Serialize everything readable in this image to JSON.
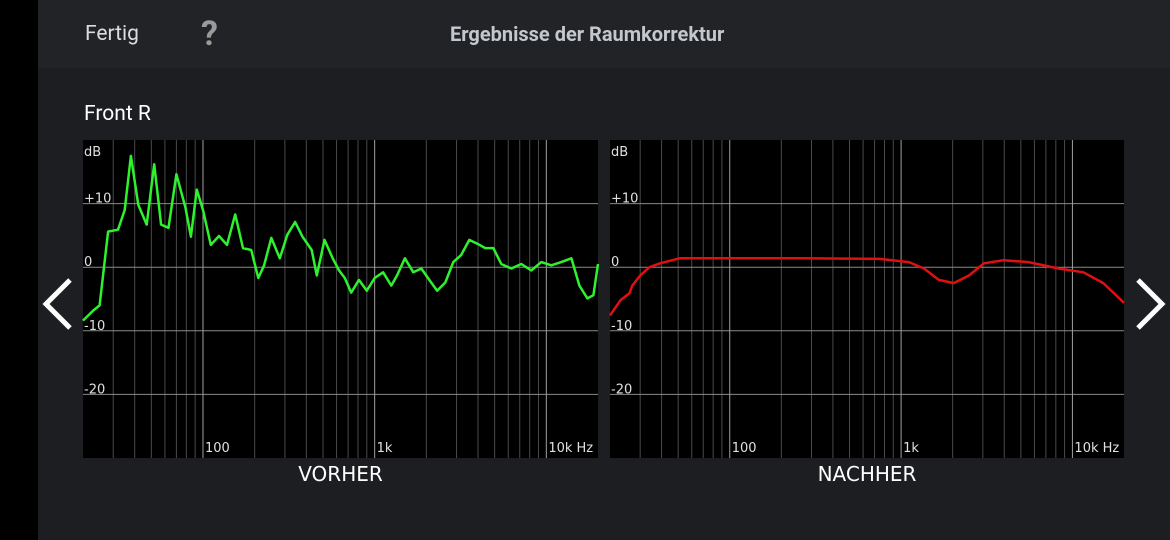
{
  "header": {
    "done": "Fertig",
    "help": "?",
    "title": "Ergebnisse der Raumkorrektur"
  },
  "channel": "Front R",
  "chart_data": [
    {
      "type": "line",
      "title": "VORHER",
      "y_label": "dB",
      "log_x": true,
      "grid": true,
      "xlim": [
        20,
        20000
      ],
      "ylim": [
        -30,
        20
      ],
      "xticks": [
        100,
        {
          "value": 1000,
          "label": "1k"
        },
        {
          "value": 10000,
          "label": "10k Hz"
        }
      ],
      "minor_xticks": [
        30,
        40,
        50,
        60,
        70,
        80,
        90,
        200,
        300,
        400,
        500,
        600,
        700,
        800,
        900,
        2000,
        3000,
        4000,
        5000,
        6000,
        7000,
        8000,
        9000
      ],
      "yticks": [
        {
          "value": 10,
          "label": "+10"
        },
        0,
        -10,
        -20
      ],
      "x": [
        20,
        23,
        25,
        28,
        32,
        35,
        38,
        42,
        47,
        52,
        57,
        63,
        70,
        79,
        85,
        92,
        100,
        111,
        124,
        138,
        154,
        171,
        191,
        210,
        227,
        250,
        280,
        310,
        344,
        380,
        430,
        460,
        510,
        570,
        620,
        670,
        730,
        810,
        900,
        1000,
        1120,
        1250,
        1350,
        1500,
        1680,
        1870,
        2080,
        2310,
        2580,
        2870,
        3190,
        3560,
        3960,
        4410,
        4910,
        5470,
        6250,
        7150,
        8180,
        9350,
        10690,
        12230,
        13990,
        15580,
        17340,
        18800,
        20000
      ],
      "series": [
        {
          "color": "#2df22d",
          "values": [
            -8.4,
            -6.8,
            -6,
            5.6,
            5.9,
            9,
            17.5,
            9.8,
            6.7,
            16.2,
            6.7,
            6.2,
            14.6,
            9.4,
            4.8,
            12.2,
            9,
            3.5,
            4.9,
            3.5,
            8.3,
            3,
            2.7,
            -1.7,
            0.3,
            4.6,
            1.4,
            5.1,
            7.1,
            4.8,
            2.7,
            -1.3,
            4.3,
            1.4,
            -0.5,
            -1.7,
            -4,
            -2,
            -3.7,
            -1.7,
            -0.8,
            -2.9,
            -1.3,
            1.4,
            -0.8,
            -0.2,
            -2,
            -3.7,
            -2.4,
            0.8,
            1.9,
            4.3,
            3.7,
            3,
            3,
            0.5,
            -0.2,
            0.5,
            -0.5,
            0.8,
            0.3,
            0.8,
            1.4,
            -2.9,
            -4.9,
            -4.4,
            0.5
          ]
        }
      ]
    },
    {
      "type": "line",
      "title": "NACHHER",
      "y_label": "dB",
      "log_x": true,
      "grid": true,
      "xlim": [
        20,
        20000
      ],
      "ylim": [
        -30,
        20
      ],
      "xticks": [
        100,
        {
          "value": 1000,
          "label": "1k"
        },
        {
          "value": 10000,
          "label": "10k Hz"
        }
      ],
      "minor_xticks": [
        30,
        40,
        50,
        60,
        70,
        80,
        90,
        200,
        300,
        400,
        500,
        600,
        700,
        800,
        900,
        2000,
        3000,
        4000,
        5000,
        6000,
        7000,
        8000,
        9000
      ],
      "yticks": [
        {
          "value": 10,
          "label": "+10"
        },
        0,
        -10,
        -20
      ],
      "x": [
        20,
        23,
        26,
        27,
        30,
        34,
        39,
        51,
        67,
        100,
        260,
        750,
        1110,
        1360,
        1660,
        2030,
        2490,
        3040,
        3970,
        5550,
        8290,
        11590,
        15140,
        20000
      ],
      "series": [
        {
          "color": "#e01010",
          "values": [
            -7.6,
            -5.2,
            -4.1,
            -2.9,
            -1.3,
            0,
            0.6,
            1.4,
            1.4,
            1.4,
            1.4,
            1.3,
            0.8,
            -0.2,
            -2,
            -2.5,
            -1.3,
            0.6,
            1.1,
            0.8,
            -0.2,
            -0.8,
            -2.5,
            -5.6
          ]
        }
      ]
    }
  ]
}
